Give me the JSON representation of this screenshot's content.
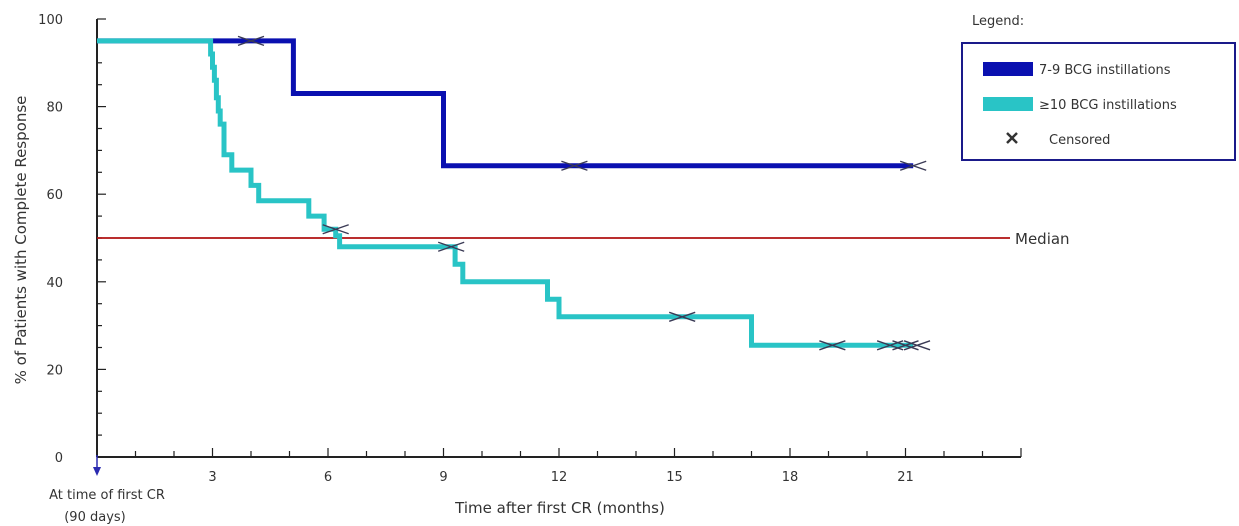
{
  "chart_data": {
    "type": "line",
    "subtype": "kaplan-meier",
    "title": "",
    "xlabel": "Time after first CR (months)",
    "ylabel": "% of Patients with Complete Response",
    "xlim": [
      0,
      24
    ],
    "ylim": [
      0,
      100
    ],
    "x_ticks": [
      {
        "value": 3,
        "label": "3"
      },
      {
        "value": 6,
        "label": "6"
      },
      {
        "value": 9,
        "label": "9"
      },
      {
        "value": 12,
        "label": "12"
      },
      {
        "value": 15,
        "label": "15"
      },
      {
        "value": 18,
        "label": "18"
      },
      {
        "value": 21,
        "label": "21"
      }
    ],
    "y_ticks": [
      {
        "value": 0,
        "label": "0"
      },
      {
        "value": 20,
        "label": "20"
      },
      {
        "value": 40,
        "label": "40"
      },
      {
        "value": 60,
        "label": "60"
      },
      {
        "value": 80,
        "label": "80"
      },
      {
        "value": 100,
        "label": "100"
      }
    ],
    "x_origin_label_line1": "At time of first CR",
    "x_origin_label_line2": "(90 days)",
    "grid": false,
    "legend_title": "Legend:",
    "legend_position": "top-right",
    "censored_label": "Censored",
    "censored_marker": "X",
    "series": [
      {
        "name": "7-9 BCG instillations",
        "color": "#0a10b0",
        "x": [
          0,
          5.1,
          5.1,
          9.0,
          9.0,
          21.2
        ],
        "y": [
          95,
          95,
          83,
          83,
          66.5,
          66.5
        ],
        "censored": [
          {
            "x": 4.0,
            "y": 95
          },
          {
            "x": 12.4,
            "y": 66.5
          },
          {
            "x": 21.2,
            "y": 66.5
          }
        ]
      },
      {
        "name": "≥10 BCG instillations",
        "color": "#29c4c6",
        "x": [
          0,
          2.95,
          2.95,
          3.0,
          3.0,
          3.05,
          3.05,
          3.1,
          3.1,
          3.15,
          3.15,
          3.2,
          3.2,
          3.3,
          3.3,
          3.5,
          3.5,
          4.0,
          4.0,
          4.2,
          4.2,
          5.5,
          5.5,
          5.9,
          5.9,
          6.2,
          6.2,
          6.3,
          6.3,
          9.3,
          9.3,
          9.5,
          9.5,
          11.7,
          11.7,
          12.0,
          12.0,
          17.0,
          17.0,
          21.2
        ],
        "y": [
          95,
          95,
          92,
          92,
          89,
          89,
          86,
          86,
          82,
          82,
          79,
          79,
          76,
          76,
          69,
          69,
          65.5,
          65.5,
          62,
          62,
          58.5,
          58.5,
          55,
          55,
          52,
          52,
          50.5,
          50.5,
          48,
          48,
          44,
          44,
          40,
          40,
          36,
          36,
          32,
          32,
          25.5,
          25.5
        ],
        "censored": [
          {
            "x": 6.2,
            "y": 52
          },
          {
            "x": 9.2,
            "y": 48
          },
          {
            "x": 15.2,
            "y": 32
          },
          {
            "x": 19.1,
            "y": 25.5
          },
          {
            "x": 20.6,
            "y": 25.5
          },
          {
            "x": 21.0,
            "y": 25.5
          },
          {
            "x": 21.3,
            "y": 25.5
          }
        ]
      }
    ],
    "reference_lines": [
      {
        "name": "Median",
        "y": 50,
        "color": "#b01010"
      }
    ]
  }
}
